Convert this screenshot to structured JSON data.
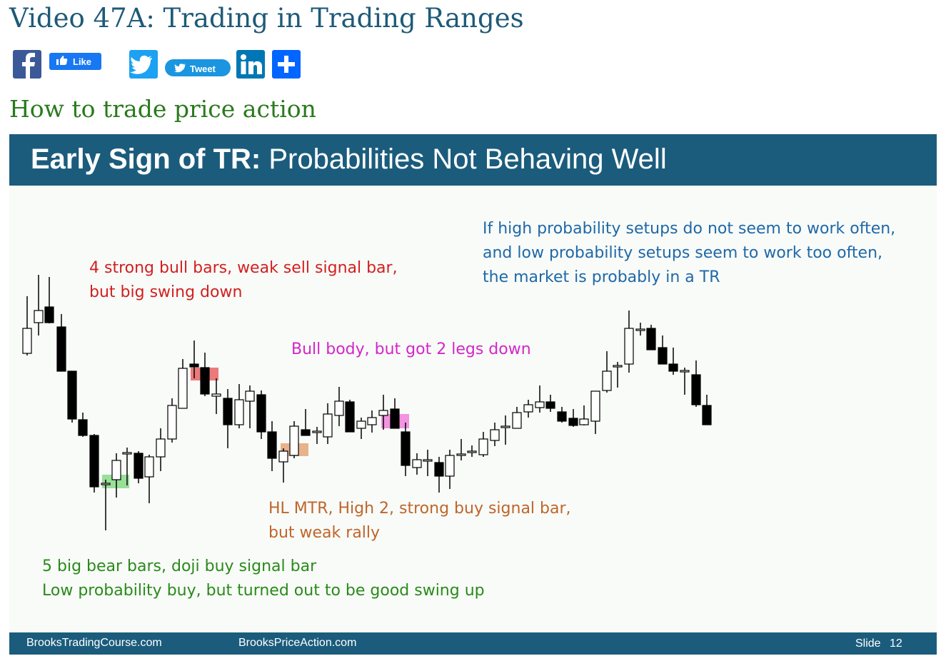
{
  "header": {
    "title": "Video 47A: Trading in Trading Ranges"
  },
  "share": {
    "like": "Like",
    "tweet": "Tweet"
  },
  "section": {
    "heading": "How to trade price action"
  },
  "slide": {
    "title_bold": "Early Sign of TR:",
    "title_rest": "Probabilities Not Behaving Well",
    "annotations": [
      {
        "lines": [
          "If high probability setups do not seem to work often,",
          "and low probability setups seem to work too often,",
          "the market is probably in a TR"
        ]
      },
      {
        "lines": [
          "4 strong bull bars, weak sell signal bar,",
          "but big swing down"
        ]
      },
      {
        "lines": [
          "Bull body, but got 2 legs down"
        ]
      },
      {
        "lines": [
          "HL MTR, High 2, strong buy signal bar,",
          "but weak rally"
        ]
      },
      {
        "lines": [
          "5 big bear bars, doji buy signal bar",
          "Low probability buy, but turned out to be good swing up"
        ]
      }
    ],
    "footer": {
      "left": "BrooksTradingCourse.com",
      "middle": "BrooksPriceAction.com",
      "slide_label": "Slide",
      "slide_number": "12"
    }
  }
}
